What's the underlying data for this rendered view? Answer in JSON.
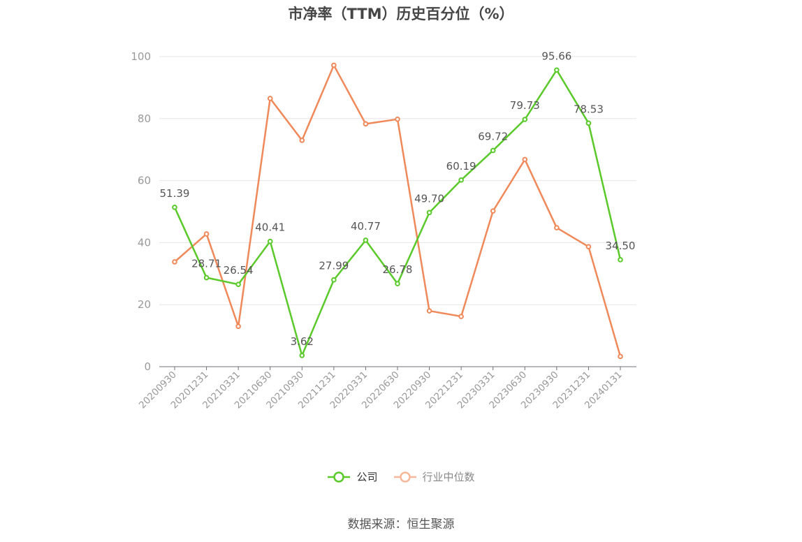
{
  "title": "市净率（TTM）历史百分位（%）",
  "source": "数据来源：恒生聚源",
  "chart_data": {
    "type": "line",
    "title": "市净率（TTM）历史百分位（%）",
    "categories": [
      "20200930",
      "20201231",
      "20210331",
      "20210630",
      "20210930",
      "20211231",
      "20220331",
      "20220630",
      "20220930",
      "20221231",
      "20230331",
      "20230630",
      "20230930",
      "20231231",
      "20240131"
    ],
    "ylim": [
      0,
      100
    ],
    "yticks": [
      0,
      20,
      40,
      60,
      80,
      100
    ],
    "grid": true,
    "legend_position": "bottom",
    "series": [
      {
        "name": "公司",
        "color": "#5ac92a",
        "show_labels": true,
        "values": [
          51.39,
          28.71,
          26.54,
          40.41,
          3.62,
          27.99,
          40.77,
          26.78,
          49.7,
          60.19,
          69.72,
          79.73,
          95.66,
          78.53,
          34.5
        ]
      },
      {
        "name": "行业中位数",
        "color": "#f0895a",
        "legend_color": "#f7b89a",
        "show_labels": false,
        "values": [
          33.8,
          42.8,
          13.0,
          86.5,
          73.0,
          97.2,
          78.3,
          79.8,
          18.0,
          16.2,
          50.2,
          66.8,
          44.8,
          38.7,
          3.3
        ]
      }
    ]
  }
}
